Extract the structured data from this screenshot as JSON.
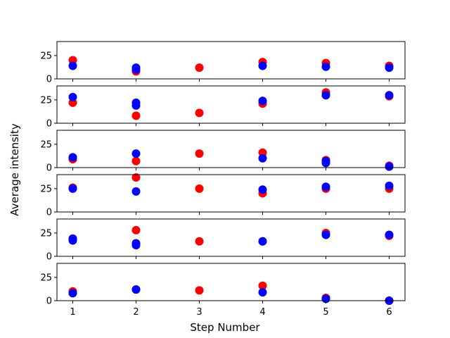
{
  "chart_data": {
    "type": "scatter",
    "xlabel": "Step Number",
    "ylabel": "Average intensity",
    "x_ticks": [
      1,
      2,
      3,
      4,
      5,
      6
    ],
    "xlim": [
      0.75,
      6.25
    ],
    "ylim": [
      0,
      40
    ],
    "y_ticks": [
      0,
      25
    ],
    "grid": false,
    "colors": {
      "red": "#ff0000",
      "blue": "#0000ff"
    },
    "panels": [
      {
        "red": [
          [
            1,
            20
          ],
          [
            2,
            8
          ],
          [
            3,
            12
          ],
          [
            4,
            18
          ],
          [
            5,
            17
          ],
          [
            6,
            14
          ]
        ],
        "blue": [
          [
            1,
            14
          ],
          [
            2,
            12
          ],
          [
            2,
            10
          ],
          [
            4,
            14
          ],
          [
            5,
            13
          ],
          [
            6,
            12
          ]
        ]
      },
      {
        "red": [
          [
            1,
            22
          ],
          [
            2,
            8
          ],
          [
            3,
            11
          ],
          [
            4,
            21
          ],
          [
            5,
            33
          ],
          [
            6,
            29
          ]
        ],
        "blue": [
          [
            1,
            28
          ],
          [
            2,
            22
          ],
          [
            2,
            19
          ],
          [
            4,
            24
          ],
          [
            5,
            30
          ],
          [
            6,
            30
          ]
        ]
      },
      {
        "red": [
          [
            1,
            9
          ],
          [
            2,
            7
          ],
          [
            3,
            15
          ],
          [
            4,
            16
          ],
          [
            5,
            8
          ],
          [
            6,
            2
          ]
        ],
        "blue": [
          [
            1,
            11
          ],
          [
            2,
            15
          ],
          [
            4,
            10
          ],
          [
            5,
            5
          ],
          [
            5,
            7
          ],
          [
            6,
            1
          ]
        ]
      },
      {
        "red": [
          [
            1,
            26
          ],
          [
            2,
            37
          ],
          [
            3,
            25
          ],
          [
            4,
            20
          ],
          [
            5,
            25
          ],
          [
            6,
            25
          ]
        ],
        "blue": [
          [
            1,
            25
          ],
          [
            2,
            22
          ],
          [
            4,
            24
          ],
          [
            5,
            27
          ],
          [
            6,
            28
          ]
        ]
      },
      {
        "red": [
          [
            1,
            19
          ],
          [
            2,
            28
          ],
          [
            3,
            16
          ],
          [
            4,
            16
          ],
          [
            5,
            25
          ],
          [
            6,
            22
          ]
        ],
        "blue": [
          [
            1,
            17
          ],
          [
            1,
            19
          ],
          [
            2,
            14
          ],
          [
            2,
            12
          ],
          [
            4,
            16
          ],
          [
            5,
            23
          ],
          [
            6,
            23
          ]
        ]
      },
      {
        "red": [
          [
            1,
            10
          ],
          [
            2,
            12
          ],
          [
            3,
            11
          ],
          [
            4,
            16
          ],
          [
            5,
            3
          ],
          [
            6,
            0
          ]
        ],
        "blue": [
          [
            1,
            8
          ],
          [
            2,
            12
          ],
          [
            4,
            9
          ],
          [
            5,
            2
          ],
          [
            6,
            0
          ]
        ]
      }
    ]
  }
}
